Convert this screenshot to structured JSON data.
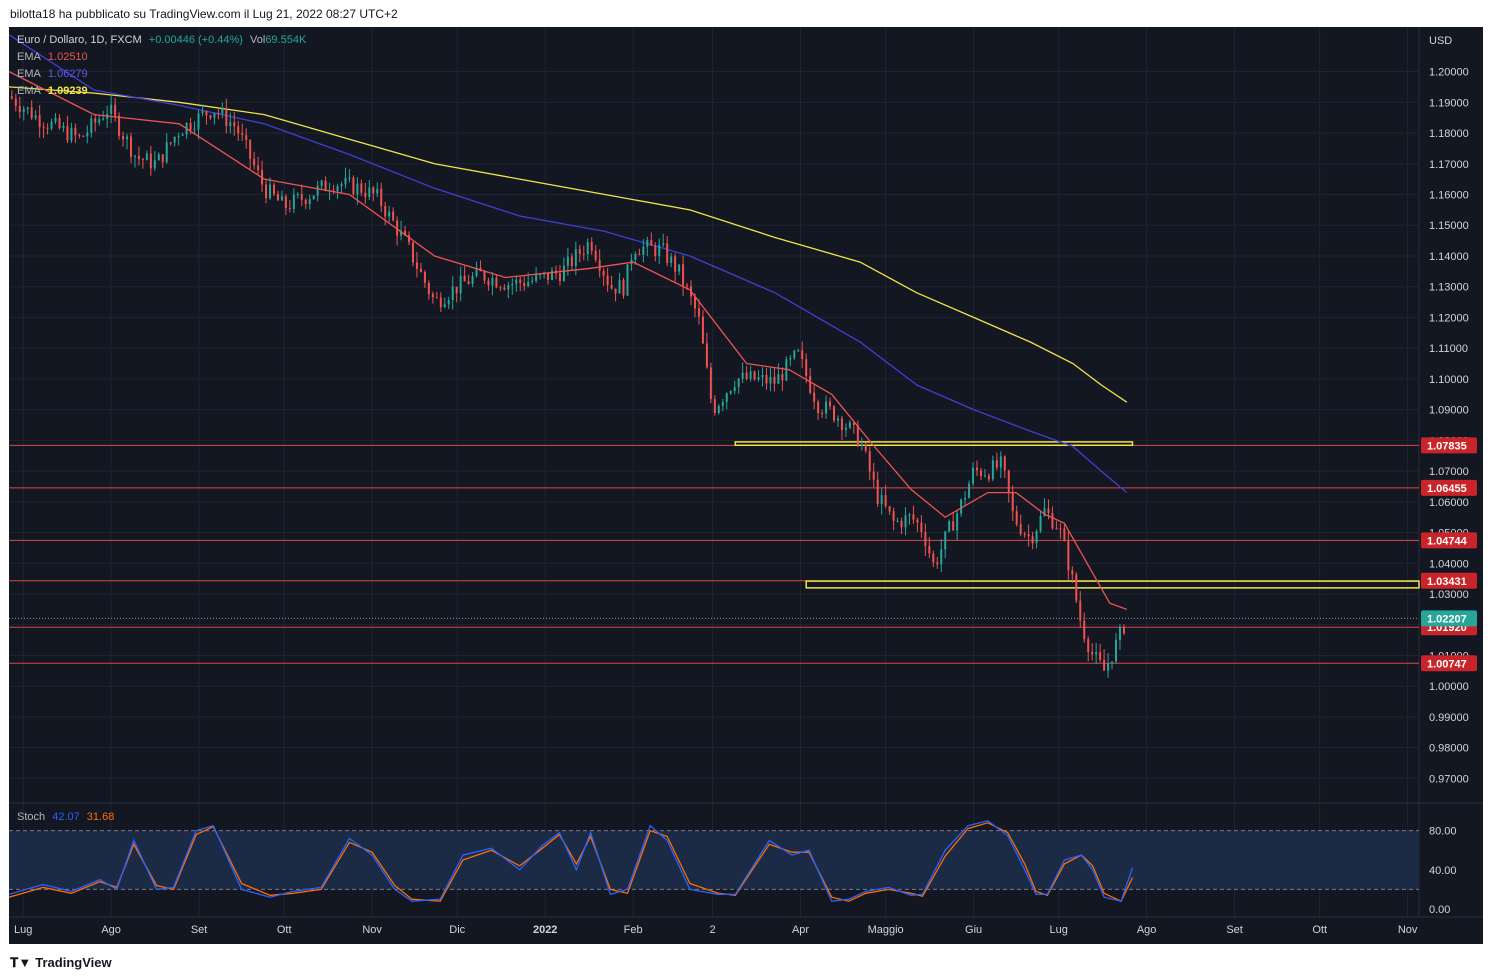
{
  "header": {
    "caption": "bilotta18 ha pubblicato su TradingView.com il Lug 21, 2022 08:27 UTC+2"
  },
  "legend": {
    "symbol": "Euro / Dollaro, 1D, FXCM",
    "change": "+0.00446 (+0.44%)",
    "vol_label": "Vol",
    "vol_value": "69.554K",
    "ema_label": "EMA",
    "ema": [
      {
        "value": "1.02510",
        "color": "#ef5350"
      },
      {
        "value": "1.06279",
        "color": "#3f3fd6"
      },
      {
        "value": "1.09239",
        "color": "#f2e34a"
      }
    ],
    "stoch_label": "Stoch",
    "stoch_k": "42.07",
    "stoch_d": "31.68"
  },
  "footer": {
    "logo_text": "TradingView"
  },
  "colors": {
    "background": "#131722",
    "up": "#26a69a",
    "down": "#ef5350",
    "grid": "#1f2430",
    "axis_text": "#d1d4dc",
    "hline": "#e04646",
    "zone": "#f2e34a",
    "ema20": "#ef5350",
    "ema100": "#3f3fd6",
    "ema200": "#f2e34a",
    "stoch_k": "#2962ff",
    "stoch_d": "#ff6d00",
    "stoch_band": "#1c2b45"
  },
  "chart_data": {
    "type": "candlestick",
    "currency_label": "USD",
    "y_range": [
      0.962,
      1.2145
    ],
    "y_ticks": [
      "1.20000",
      "1.19000",
      "1.18000",
      "1.17000",
      "1.16000",
      "1.15000",
      "1.14000",
      "1.13000",
      "1.12000",
      "1.11000",
      "1.10000",
      "1.09000",
      "1.08000",
      "1.07000",
      "1.06000",
      "1.05000",
      "1.04000",
      "1.03000",
      "1.02000",
      "1.01000",
      "1.00000",
      "0.99000",
      "0.98000",
      "0.97000"
    ],
    "x_labels": [
      {
        "label": "Lug",
        "day": 5,
        "bold": false
      },
      {
        "label": "Ago",
        "day": 36,
        "bold": false
      },
      {
        "label": "Set",
        "day": 67,
        "bold": false
      },
      {
        "label": "Ott",
        "day": 97,
        "bold": false
      },
      {
        "label": "Nov",
        "day": 128,
        "bold": false
      },
      {
        "label": "Dic",
        "day": 158,
        "bold": false
      },
      {
        "label": "2022",
        "day": 189,
        "bold": true
      },
      {
        "label": "Feb",
        "day": 220,
        "bold": false
      },
      {
        "label": "2",
        "day": 248,
        "bold": false
      },
      {
        "label": "Apr",
        "day": 279,
        "bold": false
      },
      {
        "label": "Maggio",
        "day": 309,
        "bold": false
      },
      {
        "label": "Giu",
        "day": 340,
        "bold": false
      },
      {
        "label": "Lug",
        "day": 370,
        "bold": false
      },
      {
        "label": "Ago",
        "day": 401,
        "bold": false
      },
      {
        "label": "Set",
        "day": 432,
        "bold": false
      },
      {
        "label": "Ott",
        "day": 462,
        "bold": false
      },
      {
        "label": "Nov",
        "day": 493,
        "bold": false
      }
    ],
    "x_range_days": [
      0,
      497
    ],
    "price_path": [
      [
        0,
        1.192
      ],
      [
        10,
        1.185
      ],
      [
        25,
        1.178
      ],
      [
        35,
        1.188
      ],
      [
        45,
        1.172
      ],
      [
        52,
        1.17
      ],
      [
        60,
        1.181
      ],
      [
        72,
        1.188
      ],
      [
        80,
        1.182
      ],
      [
        90,
        1.162
      ],
      [
        97,
        1.156
      ],
      [
        106,
        1.16
      ],
      [
        114,
        1.164
      ],
      [
        124,
        1.162
      ],
      [
        130,
        1.159
      ],
      [
        140,
        1.144
      ],
      [
        150,
        1.125
      ],
      [
        158,
        1.13
      ],
      [
        166,
        1.134
      ],
      [
        176,
        1.131
      ],
      [
        185,
        1.132
      ],
      [
        195,
        1.135
      ],
      [
        205,
        1.145
      ],
      [
        212,
        1.13
      ],
      [
        217,
        1.13
      ],
      [
        220,
        1.143
      ],
      [
        230,
        1.142
      ],
      [
        236,
        1.135
      ],
      [
        243,
        1.12
      ],
      [
        248,
        1.09
      ],
      [
        256,
        1.1
      ],
      [
        262,
        1.1
      ],
      [
        270,
        1.099
      ],
      [
        278,
        1.108
      ],
      [
        285,
        1.092
      ],
      [
        292,
        1.088
      ],
      [
        300,
        1.08
      ],
      [
        306,
        1.062
      ],
      [
        312,
        1.053
      ],
      [
        318,
        1.055
      ],
      [
        322,
        1.051
      ],
      [
        326,
        1.039
      ],
      [
        331,
        1.05
      ],
      [
        336,
        1.06
      ],
      [
        340,
        1.07
      ],
      [
        345,
        1.07
      ],
      [
        350,
        1.072
      ],
      [
        354,
        1.055
      ],
      [
        360,
        1.048
      ],
      [
        365,
        1.057
      ],
      [
        370,
        1.052
      ],
      [
        374,
        1.038
      ],
      [
        378,
        1.02
      ],
      [
        382,
        1.01
      ],
      [
        386,
        1.005
      ],
      [
        390,
        1.013
      ],
      [
        394,
        1.022
      ]
    ],
    "ema_20_path": [
      [
        0,
        1.2
      ],
      [
        30,
        1.186
      ],
      [
        60,
        1.183
      ],
      [
        90,
        1.165
      ],
      [
        120,
        1.16
      ],
      [
        150,
        1.14
      ],
      [
        175,
        1.133
      ],
      [
        205,
        1.136
      ],
      [
        220,
        1.138
      ],
      [
        240,
        1.129
      ],
      [
        260,
        1.105
      ],
      [
        275,
        1.103
      ],
      [
        290,
        1.095
      ],
      [
        305,
        1.078
      ],
      [
        318,
        1.064
      ],
      [
        330,
        1.055
      ],
      [
        345,
        1.063
      ],
      [
        355,
        1.063
      ],
      [
        365,
        1.056
      ],
      [
        372,
        1.053
      ],
      [
        380,
        1.04
      ],
      [
        388,
        1.027
      ],
      [
        394,
        1.025
      ]
    ],
    "ema_100_path": [
      [
        0,
        1.212
      ],
      [
        30,
        1.194
      ],
      [
        60,
        1.189
      ],
      [
        90,
        1.183
      ],
      [
        120,
        1.173
      ],
      [
        150,
        1.162
      ],
      [
        180,
        1.153
      ],
      [
        210,
        1.148
      ],
      [
        240,
        1.14
      ],
      [
        270,
        1.128
      ],
      [
        300,
        1.112
      ],
      [
        320,
        1.098
      ],
      [
        340,
        1.09
      ],
      [
        360,
        1.083
      ],
      [
        375,
        1.078
      ],
      [
        385,
        1.07
      ],
      [
        394,
        1.063
      ]
    ],
    "ema_200_path": [
      [
        0,
        1.195
      ],
      [
        30,
        1.193
      ],
      [
        60,
        1.19
      ],
      [
        90,
        1.186
      ],
      [
        120,
        1.178
      ],
      [
        150,
        1.17
      ],
      [
        180,
        1.165
      ],
      [
        210,
        1.16
      ],
      [
        240,
        1.155
      ],
      [
        270,
        1.146
      ],
      [
        300,
        1.138
      ],
      [
        320,
        1.128
      ],
      [
        340,
        1.12
      ],
      [
        360,
        1.112
      ],
      [
        375,
        1.105
      ],
      [
        385,
        1.098
      ],
      [
        394,
        1.0924
      ]
    ],
    "horizontal_levels": [
      {
        "value": 1.07835,
        "label": "1.07835"
      },
      {
        "value": 1.06455,
        "label": "1.06455"
      },
      {
        "value": 1.04744,
        "label": "1.04744"
      },
      {
        "value": 1.03431,
        "label": "1.03431"
      },
      {
        "value": 1.0192,
        "label": "1.01920"
      },
      {
        "value": 1.00747,
        "label": "1.00747"
      }
    ],
    "current_price": {
      "value": 1.02207,
      "label": "1.02207"
    },
    "zones": [
      {
        "day_start": 256,
        "day_end": 396,
        "top": 1.0795,
        "bottom": 1.0784
      },
      {
        "day_start": 281,
        "day_end": 497,
        "top": 1.0342,
        "bottom": 1.032
      }
    ],
    "stoch": {
      "range": [
        0,
        100
      ],
      "ticks": [
        "80.00",
        "40.00",
        "0.00"
      ],
      "band": [
        20,
        80
      ],
      "k_path": [
        [
          0,
          15
        ],
        [
          12,
          25
        ],
        [
          22,
          18
        ],
        [
          32,
          30
        ],
        [
          38,
          20
        ],
        [
          44,
          70
        ],
        [
          52,
          20
        ],
        [
          58,
          22
        ],
        [
          66,
          80
        ],
        [
          72,
          85
        ],
        [
          82,
          20
        ],
        [
          92,
          12
        ],
        [
          100,
          18
        ],
        [
          110,
          22
        ],
        [
          120,
          72
        ],
        [
          128,
          55
        ],
        [
          136,
          20
        ],
        [
          142,
          8
        ],
        [
          152,
          10
        ],
        [
          160,
          55
        ],
        [
          170,
          62
        ],
        [
          180,
          40
        ],
        [
          188,
          65
        ],
        [
          194,
          78
        ],
        [
          200,
          40
        ],
        [
          205,
          78
        ],
        [
          212,
          15
        ],
        [
          218,
          20
        ],
        [
          226,
          85
        ],
        [
          232,
          70
        ],
        [
          240,
          20
        ],
        [
          250,
          15
        ],
        [
          256,
          15
        ],
        [
          268,
          70
        ],
        [
          276,
          55
        ],
        [
          282,
          60
        ],
        [
          290,
          8
        ],
        [
          296,
          10
        ],
        [
          302,
          18
        ],
        [
          310,
          22
        ],
        [
          318,
          14
        ],
        [
          322,
          15
        ],
        [
          330,
          60
        ],
        [
          338,
          85
        ],
        [
          345,
          90
        ],
        [
          352,
          75
        ],
        [
          358,
          40
        ],
        [
          362,
          15
        ],
        [
          366,
          15
        ],
        [
          372,
          50
        ],
        [
          378,
          55
        ],
        [
          382,
          40
        ],
        [
          386,
          12
        ],
        [
          392,
          8
        ],
        [
          396,
          42
        ]
      ],
      "d_path": [
        [
          0,
          12
        ],
        [
          12,
          22
        ],
        [
          22,
          16
        ],
        [
          32,
          28
        ],
        [
          38,
          22
        ],
        [
          44,
          66
        ],
        [
          52,
          24
        ],
        [
          58,
          20
        ],
        [
          66,
          76
        ],
        [
          72,
          84
        ],
        [
          82,
          26
        ],
        [
          92,
          14
        ],
        [
          100,
          16
        ],
        [
          110,
          20
        ],
        [
          120,
          68
        ],
        [
          128,
          58
        ],
        [
          136,
          24
        ],
        [
          142,
          10
        ],
        [
          152,
          8
        ],
        [
          160,
          50
        ],
        [
          170,
          60
        ],
        [
          180,
          44
        ],
        [
          188,
          62
        ],
        [
          194,
          76
        ],
        [
          200,
          46
        ],
        [
          205,
          74
        ],
        [
          212,
          20
        ],
        [
          218,
          16
        ],
        [
          226,
          80
        ],
        [
          232,
          74
        ],
        [
          240,
          26
        ],
        [
          250,
          16
        ],
        [
          256,
          14
        ],
        [
          268,
          66
        ],
        [
          276,
          58
        ],
        [
          282,
          58
        ],
        [
          290,
          12
        ],
        [
          296,
          8
        ],
        [
          302,
          16
        ],
        [
          310,
          20
        ],
        [
          318,
          16
        ],
        [
          322,
          13
        ],
        [
          330,
          54
        ],
        [
          338,
          82
        ],
        [
          345,
          88
        ],
        [
          352,
          78
        ],
        [
          358,
          46
        ],
        [
          362,
          18
        ],
        [
          366,
          14
        ],
        [
          372,
          46
        ],
        [
          378,
          55
        ],
        [
          382,
          44
        ],
        [
          386,
          16
        ],
        [
          392,
          8
        ],
        [
          396,
          32
        ]
      ]
    }
  }
}
